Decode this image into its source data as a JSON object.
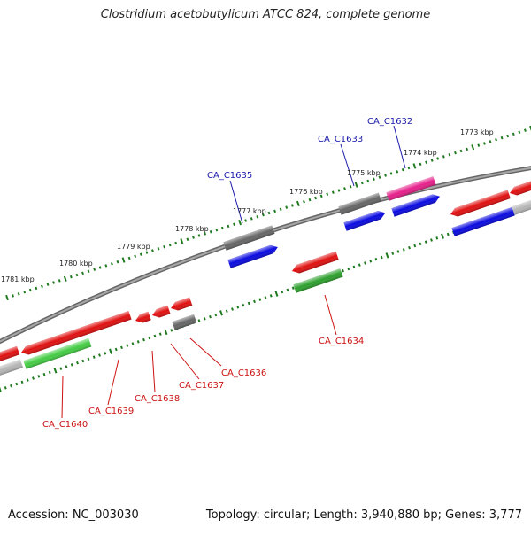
{
  "title": "Clostridium acetobutylicum ATCC 824, complete genome",
  "footer": {
    "accession": "Accession: NC_003030",
    "summary": "Topology: circular; Length: 3,940,880 bp; Genes: 3,777"
  },
  "ruler": [
    {
      "label": "1781 kbp"
    },
    {
      "label": "1780 kbp"
    },
    {
      "label": "1779 kbp"
    },
    {
      "label": "1778 kbp"
    },
    {
      "label": "1777 kbp"
    },
    {
      "label": "1776 kbp"
    },
    {
      "label": "1775 kbp"
    },
    {
      "label": "1774 kbp"
    },
    {
      "label": "1773 kbp"
    }
  ],
  "gene_labels": [
    {
      "name": "CA_C1632",
      "color": "#1a1aaa"
    },
    {
      "name": "CA_C1633",
      "color": "#1a1aaa"
    },
    {
      "name": "CA_C1635",
      "color": "#1a1aaa"
    },
    {
      "name": "CA_C1634",
      "color": "#cc1111"
    },
    {
      "name": "CA_C1636",
      "color": "#cc1111"
    },
    {
      "name": "CA_C1637",
      "color": "#cc1111"
    },
    {
      "name": "CA_C1638",
      "color": "#cc1111"
    },
    {
      "name": "CA_C1639",
      "color": "#cc1111"
    },
    {
      "name": "CA_C1640",
      "color": "#cc1111"
    }
  ],
  "colors": {
    "backbone": "#808080",
    "tick": "#1f7a1f",
    "red": "#e01010",
    "blue": "#0a0ae0",
    "gray": "#666666",
    "lightgray": "#b5b5b5",
    "pink": "#e6208a",
    "green": "#2ea02e",
    "lightgreen": "#44cc44"
  }
}
